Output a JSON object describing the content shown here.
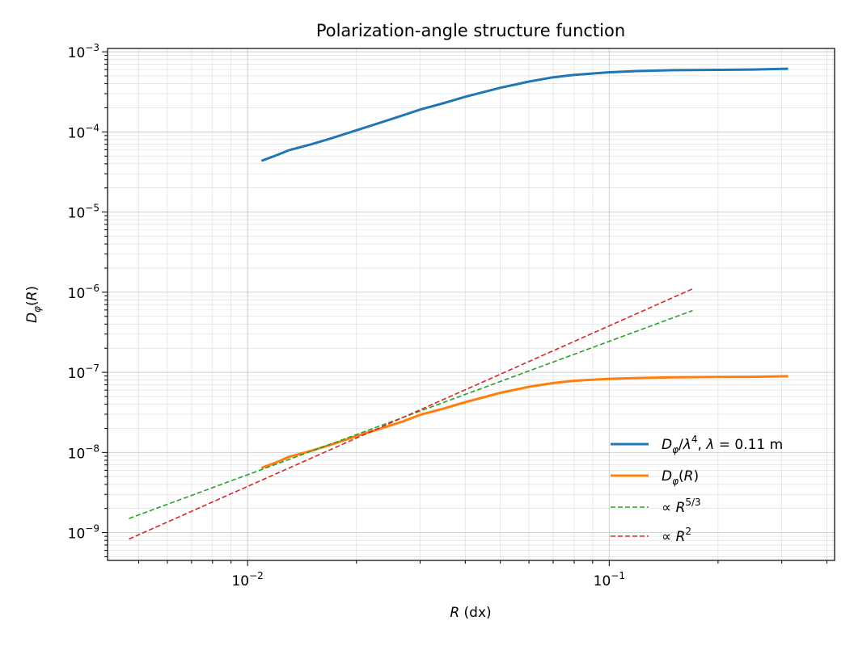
{
  "chart_data": {
    "type": "line",
    "title": "Polarization-angle structure function",
    "xlabel": "R (dx)",
    "ylabel": "D_φ(R)",
    "xscale": "log",
    "yscale": "log",
    "xlim": [
      0.0041,
      0.42
    ],
    "ylim": [
      4.5e-10,
      0.0011
    ],
    "grid": "major and minor",
    "legend_position": "lower-right",
    "x_ticks": [
      {
        "value": 0.01,
        "base": "10",
        "exp": "−2"
      },
      {
        "value": 0.1,
        "base": "10",
        "exp": "−1"
      }
    ],
    "y_ticks": [
      {
        "value": 1e-09,
        "base": "10",
        "exp": "−9"
      },
      {
        "value": 1e-08,
        "base": "10",
        "exp": "−8"
      },
      {
        "value": 1e-07,
        "base": "10",
        "exp": "−7"
      },
      {
        "value": 1e-06,
        "base": "10",
        "exp": "−6"
      },
      {
        "value": 1e-05,
        "base": "10",
        "exp": "−5"
      },
      {
        "value": 0.0001,
        "base": "10",
        "exp": "−4"
      },
      {
        "value": 0.001,
        "base": "10",
        "exp": "−3"
      }
    ],
    "series": [
      {
        "name": "D_φ/λ⁴, λ = 0.11 m",
        "color": "#1f77b4",
        "style": "solid",
        "x": [
          0.011,
          0.012,
          0.013,
          0.015,
          0.017,
          0.02,
          0.023,
          0.027,
          0.03,
          0.035,
          0.04,
          0.05,
          0.06,
          0.07,
          0.08,
          0.1,
          0.12,
          0.15,
          0.2,
          0.25,
          0.31
        ],
        "y": [
          4.4e-05,
          5.1e-05,
          5.9e-05,
          7e-05,
          8.3e-05,
          0.000105,
          0.000128,
          0.000162,
          0.00019,
          0.00023,
          0.000275,
          0.000355,
          0.000425,
          0.00048,
          0.000515,
          0.000555,
          0.000575,
          0.00059,
          0.000595,
          0.0006,
          0.000615
        ]
      },
      {
        "name": "D_φ(R)",
        "color": "#ff7f0e",
        "style": "solid",
        "x": [
          0.011,
          0.012,
          0.013,
          0.015,
          0.017,
          0.02,
          0.023,
          0.027,
          0.03,
          0.035,
          0.04,
          0.05,
          0.06,
          0.07,
          0.08,
          0.1,
          0.12,
          0.15,
          0.2,
          0.25,
          0.31
        ],
        "y": [
          6.5e-09,
          7.5e-09,
          8.8e-09,
          1.05e-08,
          1.25e-08,
          1.6e-08,
          1.95e-08,
          2.45e-08,
          2.95e-08,
          3.55e-08,
          4.25e-08,
          5.55e-08,
          6.6e-08,
          7.35e-08,
          7.85e-08,
          8.3e-08,
          8.5e-08,
          8.65e-08,
          8.75e-08,
          8.8e-08,
          8.95e-08
        ]
      },
      {
        "name": "∝ R^5/3",
        "color": "#2ca02c",
        "style": "dashed",
        "x": [
          0.0047,
          0.17
        ],
        "y": [
          1.5e-09,
          5.9e-07
        ]
      },
      {
        "name": "∝ R^2",
        "color": "#d62728",
        "style": "dashed",
        "x": [
          0.0047,
          0.17
        ],
        "y": [
          8.3e-10,
          1.1e-06
        ]
      }
    ]
  }
}
